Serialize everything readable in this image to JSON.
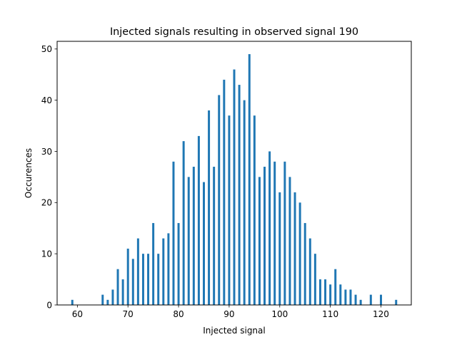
{
  "chart_data": {
    "type": "bar",
    "title": "Injected signals resulting in observed signal 190",
    "xlabel": "Injected signal",
    "ylabel": "Occurences",
    "xlim": [
      56,
      126
    ],
    "ylim": [
      0,
      51.5
    ],
    "xticks": [
      60,
      70,
      80,
      90,
      100,
      110,
      120
    ],
    "yticks": [
      0,
      10,
      20,
      30,
      40,
      50
    ],
    "bar_color": "#1f77b4",
    "grid": false,
    "x": [
      59,
      65,
      66,
      67,
      68,
      69,
      70,
      71,
      72,
      73,
      74,
      75,
      76,
      77,
      78,
      79,
      80,
      81,
      82,
      83,
      84,
      85,
      86,
      87,
      88,
      89,
      90,
      91,
      92,
      93,
      94,
      95,
      96,
      97,
      98,
      99,
      100,
      101,
      102,
      103,
      104,
      105,
      106,
      107,
      108,
      109,
      110,
      111,
      112,
      113,
      114,
      115,
      116,
      118,
      120,
      123
    ],
    "values": [
      1,
      2,
      1,
      3,
      7,
      5,
      11,
      9,
      13,
      10,
      10,
      16,
      10,
      13,
      14,
      28,
      16,
      32,
      25,
      27,
      33,
      24,
      38,
      27,
      41,
      44,
      37,
      46,
      43,
      40,
      49,
      37,
      25,
      27,
      30,
      28,
      22,
      28,
      25,
      22,
      20,
      16,
      13,
      10,
      5,
      5,
      4,
      7,
      4,
      3,
      3,
      2,
      1,
      2,
      2,
      1
    ]
  }
}
